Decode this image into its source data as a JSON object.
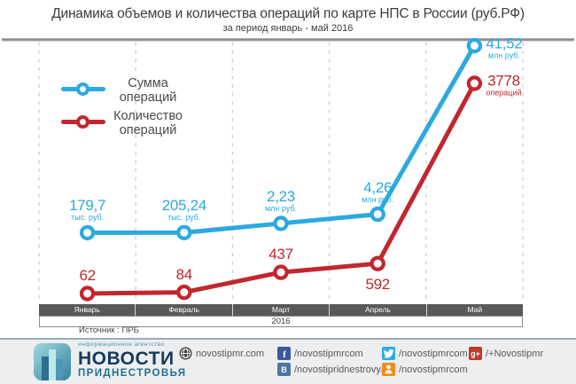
{
  "header": {
    "title": "Динамика объемов и количества операций по карте НПС в России (руб.РФ)",
    "subtitle": "за период январь - май 2016"
  },
  "legend": {
    "sum": {
      "line1": "Сумма",
      "line2": "операций"
    },
    "count": {
      "line1": "Количество",
      "line2": "операций"
    }
  },
  "chart_data": {
    "type": "line",
    "categories": [
      "Январь",
      "Февраль",
      "Март",
      "Апрель",
      "Май"
    ],
    "x_axis_year": "2016",
    "source": "Источник : ПРБ",
    "grid": "vertical-dashed",
    "legend_position": "top-left",
    "series": [
      {
        "name": "Сумма операций",
        "color": "#2BA9E0",
        "values_unit": "млн руб.",
        "values": [
          0.1797,
          0.20524,
          2.23,
          4.26,
          41.52
        ],
        "point_labels": [
          {
            "value": "179,7",
            "unit": "тыс. руб."
          },
          {
            "value": "205,24",
            "unit": "тыс. руб."
          },
          {
            "value": "2,23",
            "unit": "млн руб."
          },
          {
            "value": "4,26",
            "unit": "млн руб."
          },
          {
            "value": "41,52",
            "unit": "млн руб."
          }
        ]
      },
      {
        "name": "Количество операций",
        "color": "#C1272D",
        "values_unit": "операций",
        "values": [
          62,
          84,
          437,
          592,
          3778
        ],
        "point_labels": [
          {
            "value": "62",
            "unit": ""
          },
          {
            "value": "84",
            "unit": ""
          },
          {
            "value": "437",
            "unit": ""
          },
          {
            "value": "592",
            "unit": ""
          },
          {
            "value": "3778",
            "unit": "операций"
          }
        ]
      }
    ]
  },
  "footer": {
    "agency_tagline": "информационное агентство",
    "agency_name": "НОВОСТИ",
    "agency_region": "ПРИДНЕСТРОВЬЯ",
    "links": {
      "site": "novostipmr.com",
      "facebook": "/novostipmrcom",
      "twitter": "/novostipmrcom",
      "googleplus": "/+Novostipmr",
      "vk": "/novostipridnestrovya",
      "ok": "/novostipmrcom"
    }
  }
}
